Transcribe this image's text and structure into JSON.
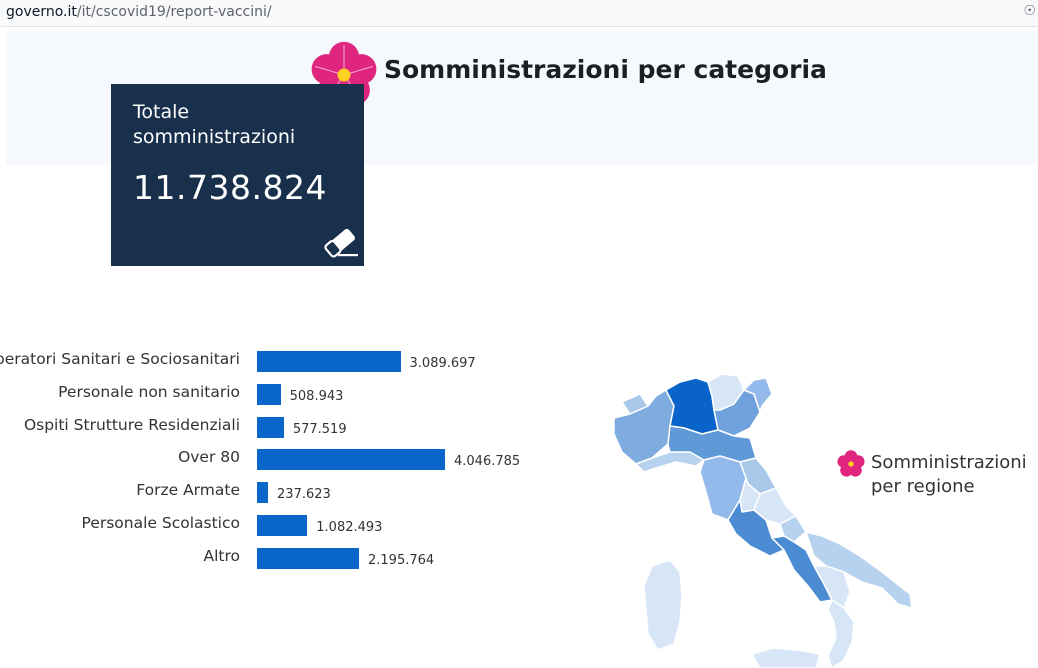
{
  "browser": {
    "url_domain": "governo.it",
    "url_path": "/it/cscovid19/report-vaccini/"
  },
  "header": {
    "title": "Somministrazioni per categoria"
  },
  "total_card": {
    "label": "Totale somministrazioni",
    "value": "11.738.824"
  },
  "map": {
    "legend": "Somministrazioni per regione"
  },
  "colors": {
    "bar": "#0a66c8",
    "card": "#19304c",
    "flower": "#e0257f"
  },
  "chart_data": {
    "type": "bar",
    "orientation": "horizontal",
    "title": "",
    "categories": [
      "Operatori Sanitari e Sociosanitari",
      "Personale non sanitario",
      "Ospiti Strutture Residenziali",
      "Over 80",
      "Forze Armate",
      "Personale Scolastico",
      "Altro"
    ],
    "values": [
      3089697,
      508943,
      577519,
      4046785,
      237623,
      1082493,
      2195764
    ],
    "labels": [
      "3.089.697",
      "508.943",
      "577.519",
      "4.046.785",
      "237.623",
      "1.082.493",
      "2.195.764"
    ],
    "xlim": [
      0,
      4046785
    ],
    "grid": false
  }
}
